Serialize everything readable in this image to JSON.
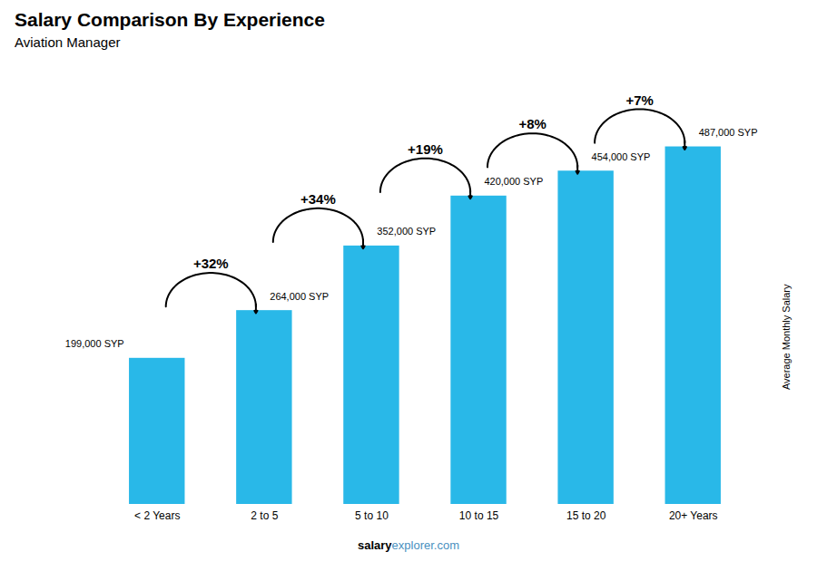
{
  "chart_data": {
    "type": "bar",
    "title": "Salary Comparison By Experience",
    "subtitle": "Aviation Manager",
    "ylabel": "Average Monthly Salary",
    "categories": [
      "< 2 Years",
      "2 to 5",
      "5 to 10",
      "10 to 15",
      "15 to 20",
      "20+ Years"
    ],
    "values": [
      199000,
      264000,
      352000,
      420000,
      454000,
      487000
    ],
    "value_labels": [
      "199,000 SYP",
      "264,000 SYP",
      "352,000 SYP",
      "420,000 SYP",
      "454,000 SYP",
      "487,000 SYP"
    ],
    "data_labels": true,
    "color": "#29b8e8",
    "ylim": [
      0,
      600000
    ],
    "tick_labels": "x",
    "grid": false,
    "annotations": [
      "+32%",
      "+34%",
      "+19%",
      "+8%",
      "+7%"
    ],
    "footer": [
      "salary",
      "explorer.com"
    ]
  }
}
